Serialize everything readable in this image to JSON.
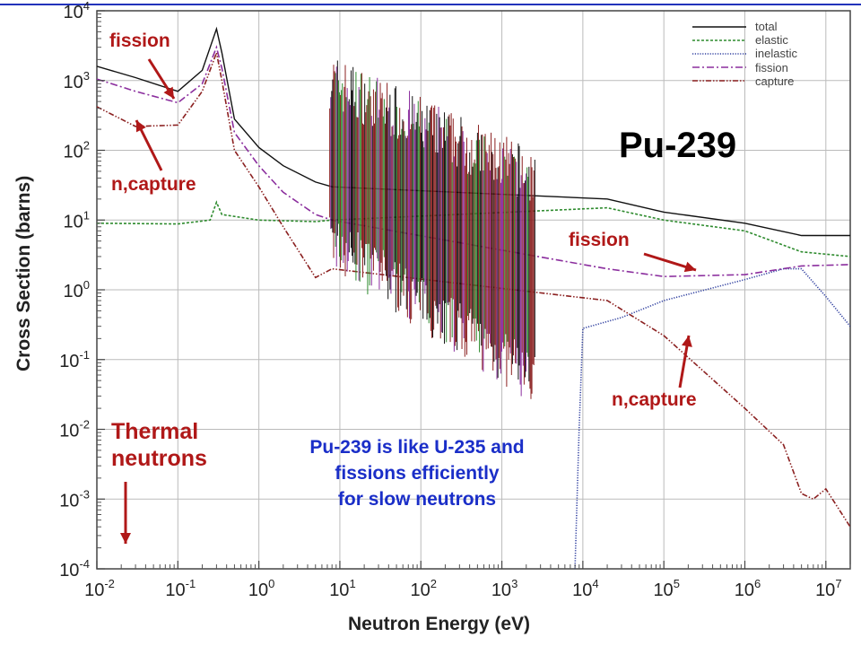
{
  "chart_data": {
    "type": "line",
    "title": "Pu-239",
    "xlabel": "Neutron Energy (eV)",
    "ylabel": "Cross Section (barns)",
    "x_scale": "log",
    "y_scale": "log",
    "xlim": [
      0.01,
      20000000
    ],
    "ylim": [
      0.0001,
      10000
    ],
    "grid": true,
    "legend_position": "top-right",
    "x_ticks": [
      "10-2",
      "10-1",
      "100",
      "101",
      "102",
      "103",
      "104",
      "105",
      "106",
      "107"
    ],
    "y_ticks": [
      "10-4",
      "10-3",
      "10-2",
      "10-1",
      "100",
      "101",
      "102",
      "103",
      "104"
    ],
    "series": [
      {
        "name": "total",
        "color": "#111111",
        "x": [
          0.01,
          0.03,
          0.1,
          0.2,
          0.3,
          0.35,
          0.5,
          1,
          2,
          5,
          8,
          20000,
          100000,
          1000000,
          5000000,
          20000000
        ],
        "y": [
          1600,
          1100,
          700,
          1400,
          5500,
          2500,
          280,
          110,
          60,
          35,
          30,
          20,
          13,
          9,
          6,
          6
        ]
      },
      {
        "name": "elastic",
        "color": "#2e8b2e",
        "x": [
          0.01,
          0.1,
          0.25,
          0.3,
          0.35,
          1,
          5,
          8,
          20000,
          100000,
          1000000,
          5000000,
          20000000
        ],
        "y": [
          9,
          8.8,
          10,
          18,
          12,
          10,
          9.5,
          10,
          15,
          10,
          7,
          3.5,
          3
        ]
      },
      {
        "name": "inelastic",
        "color": "#3040a0",
        "x": [
          8000,
          9000,
          10000,
          30000,
          100000,
          1000000,
          3000000,
          5000000,
          10000000,
          20000000
        ],
        "y": [
          0.0001,
          0.01,
          0.28,
          0.4,
          0.7,
          1.4,
          2,
          2,
          0.8,
          0.3
        ]
      },
      {
        "name": "fission",
        "color": "#8b2e9e",
        "x": [
          0.01,
          0.03,
          0.1,
          0.2,
          0.3,
          0.35,
          0.5,
          1,
          2,
          5,
          8,
          20000,
          100000,
          1000000,
          5000000,
          20000000
        ],
        "y": [
          1050,
          700,
          480,
          900,
          3000,
          1500,
          180,
          60,
          25,
          12,
          10,
          2,
          1.55,
          1.65,
          2.2,
          2.3
        ]
      },
      {
        "name": "capture",
        "color": "#8b2020",
        "x": [
          0.01,
          0.03,
          0.1,
          0.2,
          0.3,
          0.35,
          0.5,
          1,
          2,
          5,
          8,
          20000,
          100000,
          1000000,
          3000000,
          5000000,
          7000000,
          10000000,
          20000000
        ],
        "y": [
          420,
          220,
          230,
          700,
          2500,
          1000,
          100,
          30,
          8,
          1.5,
          2,
          0.7,
          0.22,
          0.02,
          0.006,
          0.0012,
          0.001,
          0.0014,
          0.0004
        ]
      }
    ]
  },
  "slide": {
    "title": "Pu-239",
    "arrow_label_fission_low": "fission",
    "arrow_label_capture_low": "n,capture",
    "arrow_label_fission_high": "fission",
    "arrow_label_capture_high": "n,capture",
    "thermal_label_line1": "Thermal",
    "thermal_label_line2": "neutrons",
    "note_line1": "Pu-239 is like U-235 and",
    "note_line2": "fissions efficiently",
    "note_line3": "for slow neutrons"
  },
  "colors": {
    "annotation_red": "#b01818",
    "note_blue": "#1a2ec8",
    "rule_blue": "#2233bb"
  }
}
